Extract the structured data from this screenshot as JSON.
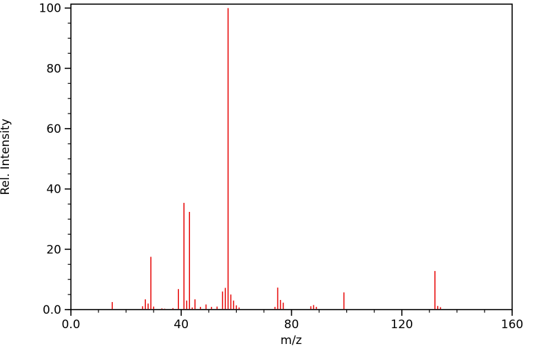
{
  "chart_data": {
    "type": "bar",
    "subtype": "mass-spectrum-stick-plot",
    "title": "",
    "xlabel": "m/z",
    "ylabel": "Rel. Intensity",
    "xlim": [
      0,
      160
    ],
    "ylim": [
      0,
      100
    ],
    "grid": false,
    "legend": "none",
    "x_major_ticks": [
      {
        "value": 0,
        "label": "0.0"
      },
      {
        "value": 40,
        "label": "40"
      },
      {
        "value": 80,
        "label": "80"
      },
      {
        "value": 120,
        "label": "120"
      },
      {
        "value": 160,
        "label": "160"
      }
    ],
    "x_minor_step": 10,
    "y_major_ticks": [
      {
        "value": 0,
        "label": "0.0"
      },
      {
        "value": 20,
        "label": "20"
      },
      {
        "value": 40,
        "label": "40"
      },
      {
        "value": 60,
        "label": "60"
      },
      {
        "value": 80,
        "label": "80"
      },
      {
        "value": 100,
        "label": "100"
      }
    ],
    "y_minor_step": 5,
    "peak_color": "#e60000",
    "axis_color": "#000000",
    "background_color": "#ffffff",
    "peaks": [
      {
        "mz": 15,
        "intensity": 2.5
      },
      {
        "mz": 26,
        "intensity": 1.1
      },
      {
        "mz": 27,
        "intensity": 3.4
      },
      {
        "mz": 28,
        "intensity": 2.0
      },
      {
        "mz": 29,
        "intensity": 17.5
      },
      {
        "mz": 30,
        "intensity": 1.0
      },
      {
        "mz": 33,
        "intensity": 0.4
      },
      {
        "mz": 34,
        "intensity": 0.3
      },
      {
        "mz": 37,
        "intensity": 0.5
      },
      {
        "mz": 39,
        "intensity": 6.8
      },
      {
        "mz": 41,
        "intensity": 35.4
      },
      {
        "mz": 42,
        "intensity": 3.0
      },
      {
        "mz": 43,
        "intensity": 32.4
      },
      {
        "mz": 44,
        "intensity": 0.7
      },
      {
        "mz": 45,
        "intensity": 3.4
      },
      {
        "mz": 47,
        "intensity": 0.9
      },
      {
        "mz": 49,
        "intensity": 1.7
      },
      {
        "mz": 51,
        "intensity": 0.9
      },
      {
        "mz": 53,
        "intensity": 1.0
      },
      {
        "mz": 55,
        "intensity": 6.0
      },
      {
        "mz": 56,
        "intensity": 7.2
      },
      {
        "mz": 57,
        "intensity": 100.0
      },
      {
        "mz": 58,
        "intensity": 5.0
      },
      {
        "mz": 59,
        "intensity": 3.0
      },
      {
        "mz": 60,
        "intensity": 1.4
      },
      {
        "mz": 61,
        "intensity": 0.7
      },
      {
        "mz": 74,
        "intensity": 0.9
      },
      {
        "mz": 75,
        "intensity": 7.3
      },
      {
        "mz": 76,
        "intensity": 3.2
      },
      {
        "mz": 77,
        "intensity": 2.3
      },
      {
        "mz": 87,
        "intensity": 1.1
      },
      {
        "mz": 88,
        "intensity": 1.5
      },
      {
        "mz": 89,
        "intensity": 0.9
      },
      {
        "mz": 99,
        "intensity": 5.7
      },
      {
        "mz": 132,
        "intensity": 12.8
      },
      {
        "mz": 133,
        "intensity": 1.2
      },
      {
        "mz": 134,
        "intensity": 0.8
      }
    ]
  }
}
